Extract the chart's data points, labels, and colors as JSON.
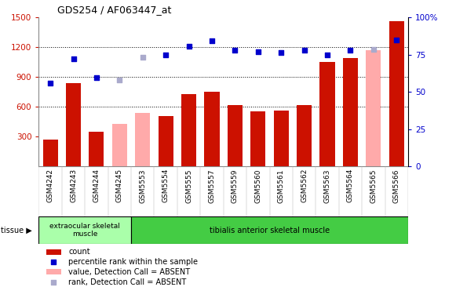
{
  "title": "GDS254 / AF063447_at",
  "samples": [
    "GSM4242",
    "GSM4243",
    "GSM4244",
    "GSM4245",
    "GSM5553",
    "GSM5554",
    "GSM5555",
    "GSM5557",
    "GSM5559",
    "GSM5560",
    "GSM5561",
    "GSM5562",
    "GSM5563",
    "GSM5564",
    "GSM5565",
    "GSM5566"
  ],
  "bar_values": [
    270,
    840,
    350,
    null,
    null,
    510,
    730,
    750,
    620,
    555,
    565,
    620,
    1050,
    1090,
    null,
    1460
  ],
  "bar_absent": [
    null,
    null,
    null,
    430,
    540,
    null,
    null,
    null,
    null,
    null,
    null,
    null,
    null,
    null,
    1170,
    null
  ],
  "dot_values": [
    840,
    1080,
    890,
    null,
    null,
    1120,
    1210,
    1260,
    1165,
    1155,
    1145,
    1165,
    1120,
    1170,
    null,
    1270
  ],
  "dot_absent": [
    null,
    null,
    null,
    870,
    1100,
    null,
    null,
    null,
    null,
    null,
    null,
    null,
    null,
    null,
    1175,
    null
  ],
  "bar_color": "#cc1100",
  "bar_absent_color": "#ffaaaa",
  "dot_color": "#0000cc",
  "dot_absent_color": "#aaaacc",
  "ylim_left": [
    0,
    1500
  ],
  "ylim_right": [
    0,
    100
  ],
  "yticks_left": [
    300,
    600,
    900,
    1200,
    1500
  ],
  "yticks_right": [
    0,
    25,
    50,
    75,
    100
  ],
  "grid_lines": [
    600,
    900,
    1200
  ],
  "tissue_group1_label": "extraocular skeletal\nmuscle",
  "tissue_group2_label": "tibialis anterior skeletal muscle",
  "n_group1": 4,
  "tissue_label": "tissue",
  "bg_color": "#ffffff",
  "tick_label_color_left": "#cc1100",
  "tick_label_color_right": "#0000cc",
  "legend_items": [
    {
      "label": "count",
      "color": "#cc1100",
      "type": "bar"
    },
    {
      "label": "percentile rank within the sample",
      "color": "#0000cc",
      "type": "dot"
    },
    {
      "label": "value, Detection Call = ABSENT",
      "color": "#ffaaaa",
      "type": "bar"
    },
    {
      "label": "rank, Detection Call = ABSENT",
      "color": "#aaaacc",
      "type": "dot"
    }
  ]
}
